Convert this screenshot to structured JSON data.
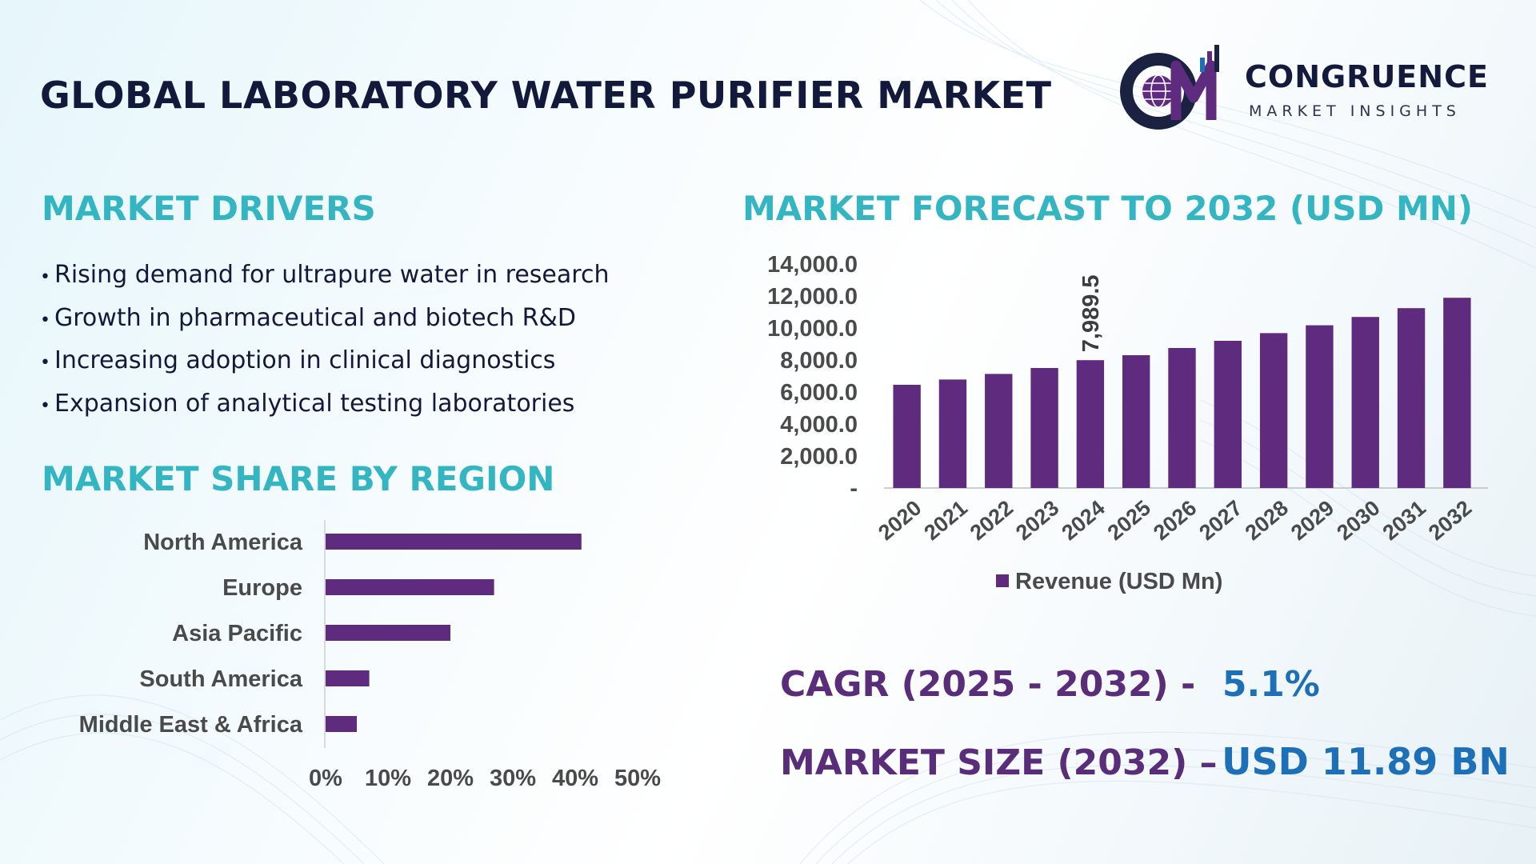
{
  "header": {
    "title": "GLOBAL LABORATORY WATER PURIFIER MARKET",
    "logo_name": "CONGRUENCE",
    "logo_tagline": "MARKET INSIGHTS",
    "logo_monogram": "CM"
  },
  "drivers": {
    "title": "MARKET DRIVERS",
    "items": [
      "Rising demand for ultrapure water in research",
      "Growth in pharmaceutical and biotech R&D",
      "Increasing adoption in clinical diagnostics",
      "Expansion of analytical testing laboratories"
    ]
  },
  "share": {
    "title": "MARKET SHARE BY REGION"
  },
  "forecast": {
    "title": "MARKET FORECAST TO 2032 (USD MN)"
  },
  "kpis": {
    "cagr_label": "CAGR (2025 - 2032) -",
    "cagr_value": "5.1%",
    "size_label": "MARKET SIZE (2032) –",
    "size_value": "USD 11.89 BN"
  },
  "colors": {
    "bar": "#5e2b7e",
    "section_title": "#33b5c2",
    "title": "#12193b",
    "kpi_label": "#5a2d7a",
    "kpi_value": "#1d6fb8"
  },
  "chart_data": [
    {
      "type": "bar",
      "orientation": "vertical",
      "title": "",
      "categories": [
        "2020",
        "2021",
        "2022",
        "2023",
        "2024",
        "2025",
        "2026",
        "2027",
        "2028",
        "2029",
        "2030",
        "2031",
        "2032"
      ],
      "series": [
        {
          "name": "Revenue (USD Mn)",
          "values": [
            6450,
            6780,
            7130,
            7500,
            7989.5,
            8300,
            8750,
            9200,
            9680,
            10170,
            10690,
            11240,
            11890
          ]
        }
      ],
      "data_labels": [
        {
          "category": "2024",
          "label": "7,989.5"
        }
      ],
      "ylim": [
        0,
        14000
      ],
      "y_ticks": [
        0,
        2000,
        4000,
        6000,
        8000,
        10000,
        12000,
        14000
      ],
      "y_tick_labels": [
        "-",
        "2,000.0",
        "4,000.0",
        "6,000.0",
        "8,000.0",
        "10,000.0",
        "12,000.0",
        "14,000.0"
      ],
      "legend": "bottom",
      "grid": false
    },
    {
      "type": "bar",
      "orientation": "horizontal",
      "categories": [
        "North America",
        "Europe",
        "Asia Pacific",
        "South America",
        "Middle East & Africa"
      ],
      "values": [
        41,
        27,
        20,
        7,
        5
      ],
      "xlim": [
        0,
        50
      ],
      "x_tick_labels": [
        "0%",
        "10%",
        "20%",
        "30%",
        "40%",
        "50%"
      ],
      "grid": false
    }
  ]
}
